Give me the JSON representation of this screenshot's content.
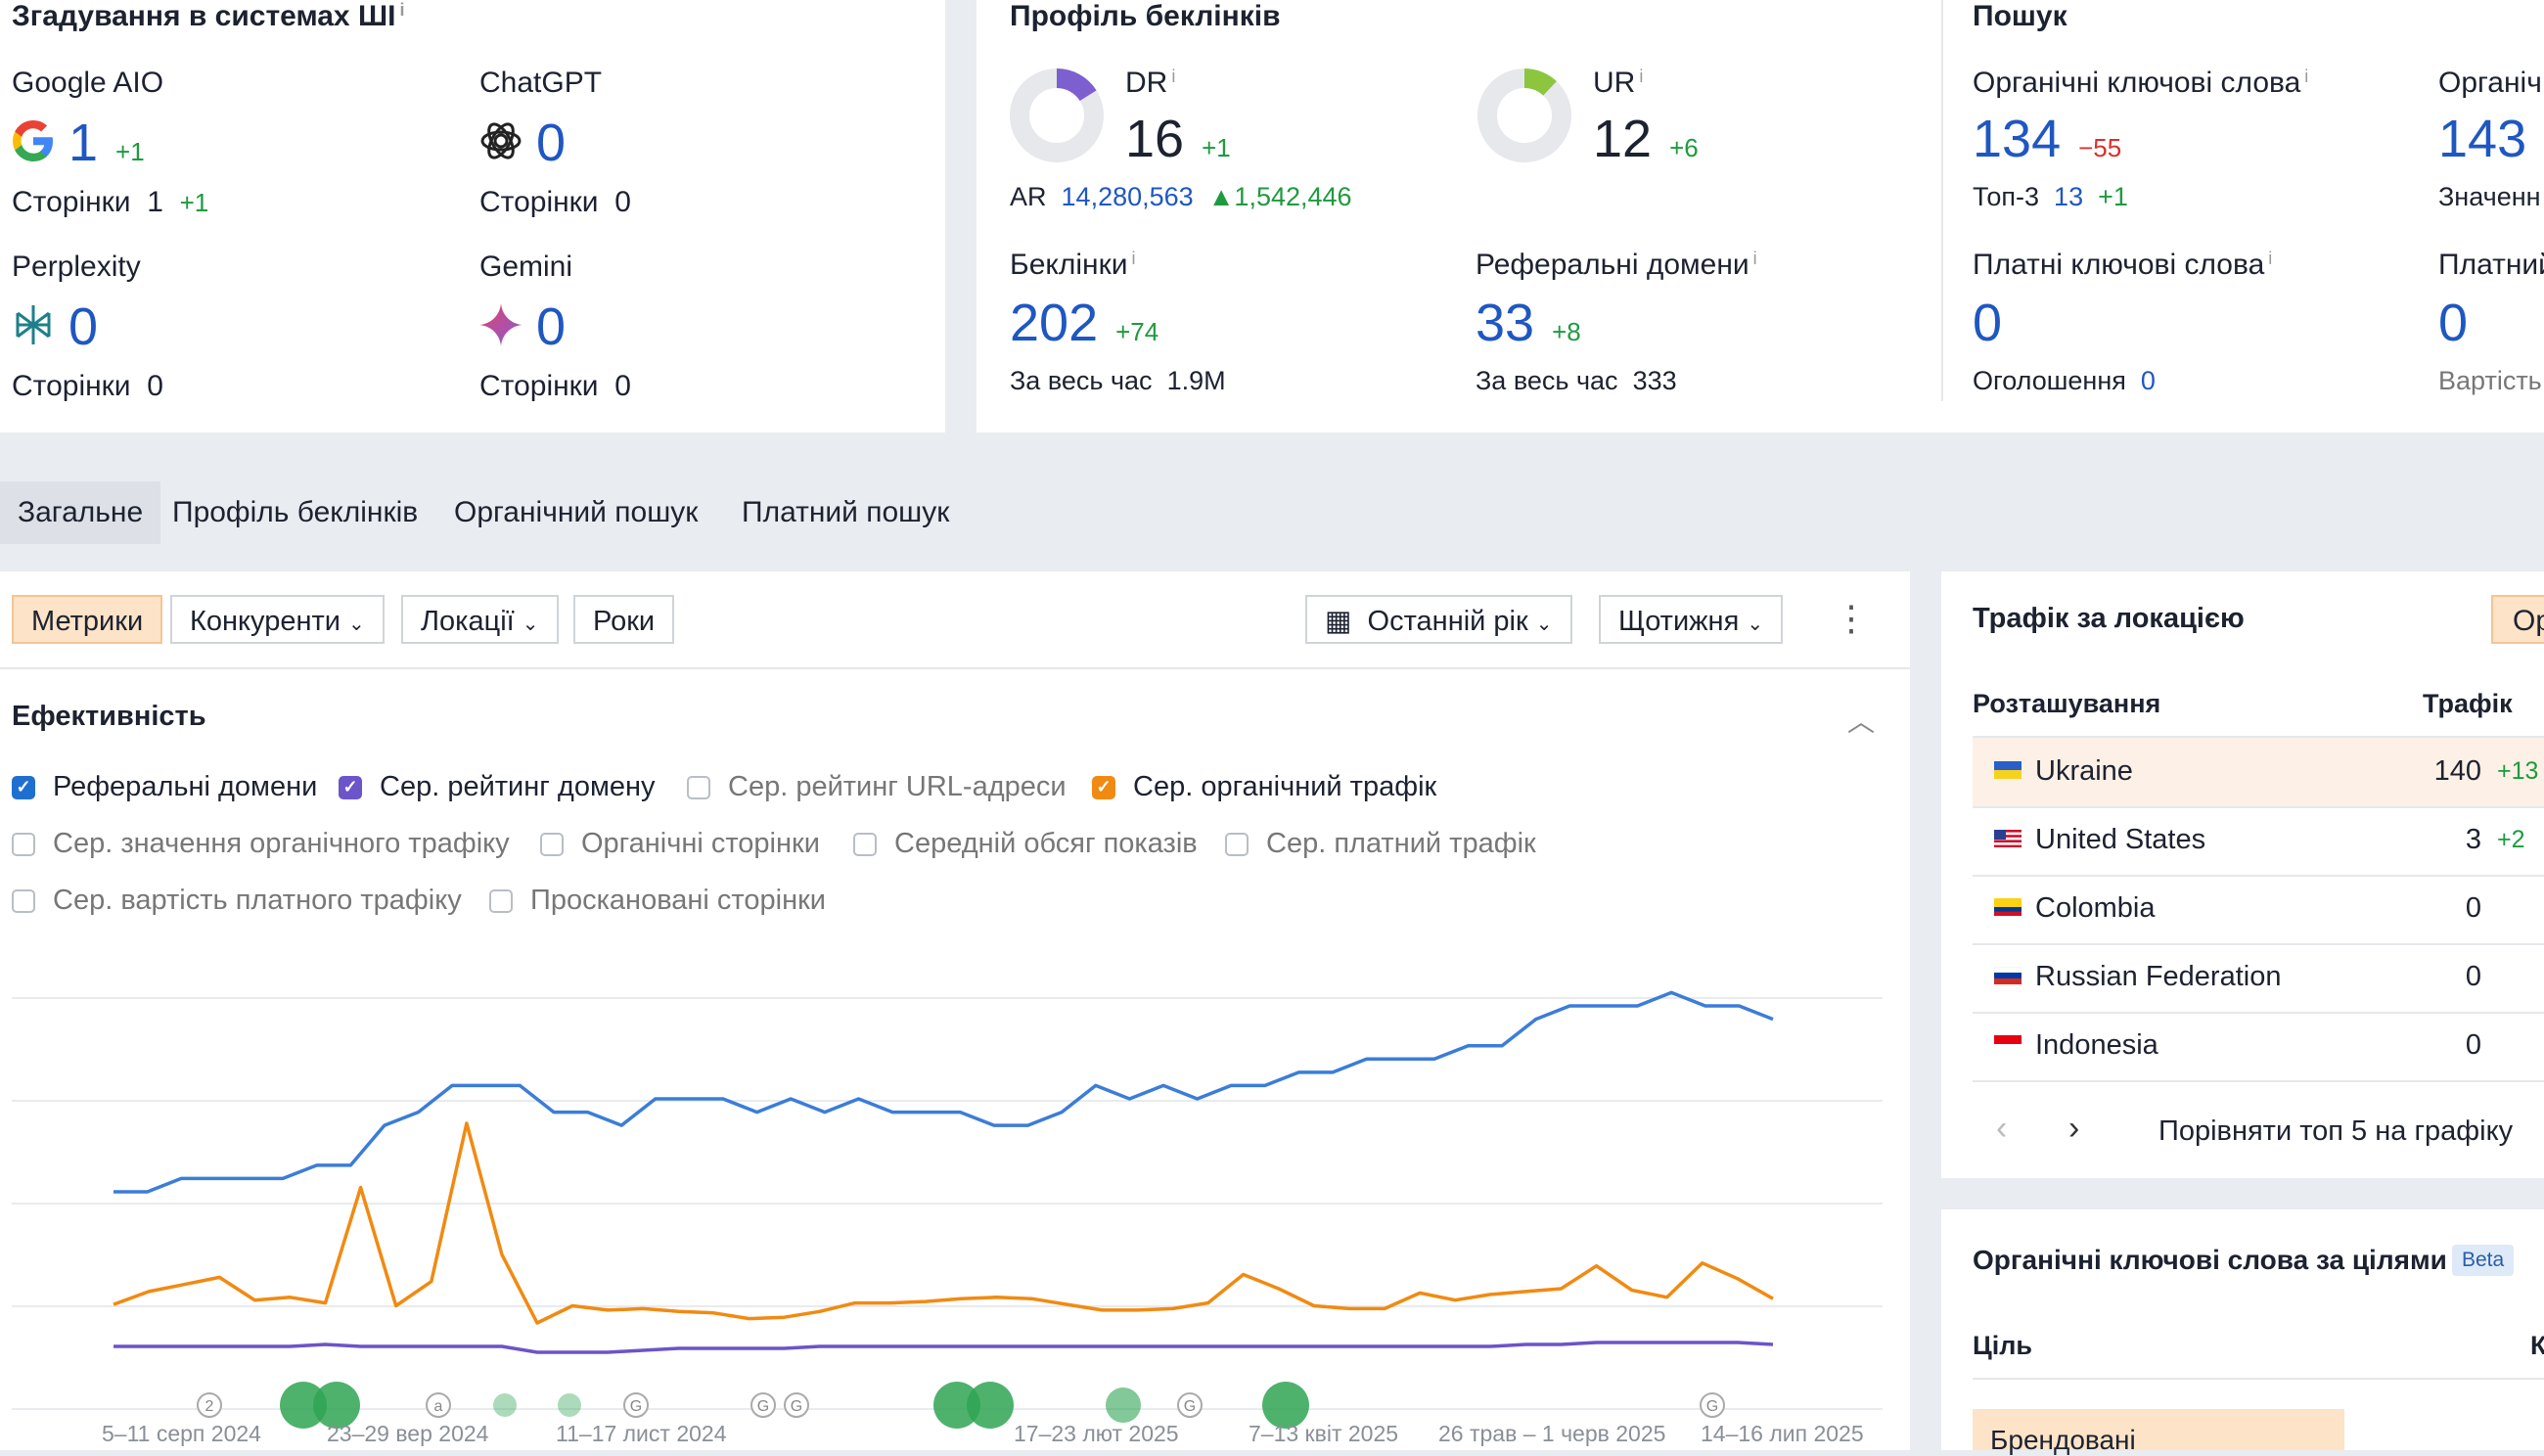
{
  "ai_mentions": {
    "title": "Згадування в системах ШІ",
    "items": [
      {
        "name": "Google AIO",
        "value": "1",
        "delta": "+1",
        "pages_label": "Сторінки",
        "pages_value": "1",
        "pages_delta": "+1"
      },
      {
        "name": "ChatGPT",
        "value": "0",
        "pages_label": "Сторінки",
        "pages_value": "0"
      },
      {
        "name": "Perplexity",
        "value": "0",
        "pages_label": "Сторінки",
        "pages_value": "0"
      },
      {
        "name": "Gemini",
        "value": "0",
        "pages_label": "Сторінки",
        "pages_value": "0"
      }
    ]
  },
  "backlinks": {
    "title": "Профіль беклінків",
    "dr_label": "DR",
    "dr_value": "16",
    "dr_delta": "+1",
    "dr_level": 0.16,
    "ur_label": "UR",
    "ur_value": "12",
    "ur_delta": "+6",
    "ur_level": 0.12,
    "ar_label": "AR",
    "ar_value": "14,280,563",
    "ar_delta": "1,542,446",
    "backlinks_label": "Беклінки",
    "backlinks_value": "202",
    "backlinks_delta": "+74",
    "backlinks_all_label": "За весь час",
    "backlinks_all_value": "1.9M",
    "refdomains_label": "Реферальні домени",
    "refdomains_value": "33",
    "refdomains_delta": "+8",
    "refdomains_all_label": "За весь час",
    "refdomains_all_value": "333"
  },
  "search": {
    "title": "Пошук",
    "organic_kw_label": "Органічні ключові слова",
    "organic_kw_value": "134",
    "organic_kw_delta": "−55",
    "top3_label": "Топ-3",
    "top3_value": "13",
    "top3_delta": "+1",
    "organic2_label": "Органіч",
    "organic2_value": "143",
    "organic2_sub": "Значенн",
    "paid_kw_label": "Платні ключові слова",
    "paid_kw_value": "0",
    "ads_label": "Оголошення",
    "ads_value": "0",
    "paid2_label": "Платний",
    "paid2_value": "0",
    "paid2_sub": "Вартість"
  },
  "tabs": [
    "Загальне",
    "Профіль беклінків",
    "Органічний пошук",
    "Платний пошук"
  ],
  "toolbar": {
    "buttons": [
      "Метрики",
      "Конкуренти",
      "Локації",
      "Роки"
    ],
    "period": "Останній рік",
    "interval": "Щотижня"
  },
  "performance": {
    "title": "Ефективність",
    "checkboxes": [
      {
        "label": "Реферальні домени",
        "checked": true,
        "color": "#1f6fd1"
      },
      {
        "label": "Сер. рейтинг домену",
        "checked": true,
        "color": "#6c54c9"
      },
      {
        "label": "Сер. рейтинг URL-адреси",
        "checked": false
      },
      {
        "label": "Сер. органічний трафік",
        "checked": true,
        "color": "#f18a12"
      },
      {
        "label": "Сер. значення органічного трафіку",
        "checked": false
      },
      {
        "label": "Органічні сторінки",
        "checked": false
      },
      {
        "label": "Середній обсяг показів",
        "checked": false
      },
      {
        "label": "Сер. платний трафік",
        "checked": false
      },
      {
        "label": "Сер. вартість платного трафіку",
        "checked": false
      },
      {
        "label": "Проскановані сторінки",
        "checked": false
      }
    ]
  },
  "chart_data": {
    "type": "line",
    "x_labels": [
      "5–11 серп 2024",
      "23–29 вер 2024",
      "11–17 лист 2024",
      "17–23 лют 2025",
      "7–13 квіт 2025",
      "26 трав – 1 черв 2025",
      "14–16 лип 2025"
    ],
    "grid": true,
    "series": [
      {
        "color": "#3b7dd8",
        "values": [
          18,
          18,
          19,
          19,
          19,
          19,
          20,
          20,
          23,
          24,
          26,
          26,
          26,
          24,
          24,
          23,
          25,
          25,
          25,
          24,
          25,
          24,
          25,
          24,
          24,
          24,
          23,
          23,
          24,
          26,
          25,
          26,
          25,
          26,
          26,
          27,
          27,
          28,
          28,
          28,
          29,
          29,
          31,
          32,
          32,
          32,
          33,
          32,
          32,
          31
        ]
      },
      {
        "color": "#f18a12",
        "values": [
          130,
          220,
          270,
          320,
          160,
          180,
          140,
          950,
          120,
          290,
          1400,
          480,
          0,
          120,
          90,
          100,
          80,
          70,
          30,
          40,
          80,
          140,
          140,
          150,
          170,
          180,
          170,
          130,
          90,
          90,
          100,
          140,
          340,
          240,
          120,
          100,
          100,
          210,
          160,
          200,
          220,
          240,
          400,
          230,
          180,
          420,
          310,
          170
        ]
      },
      {
        "color": "#6c54c9",
        "values": [
          3,
          3,
          3,
          3,
          3,
          3,
          3.1,
          3,
          3,
          3,
          3,
          3,
          2.7,
          2.7,
          2.7,
          2.8,
          2.9,
          2.9,
          2.9,
          2.9,
          3,
          3,
          3,
          3,
          3,
          3,
          3,
          3,
          3,
          3,
          3,
          3,
          3,
          3,
          3,
          3,
          3,
          3,
          3,
          3,
          3.1,
          3.1,
          3.2,
          3.2,
          3.2,
          3.2,
          3.2,
          3.1
        ]
      }
    ]
  },
  "locations": {
    "title": "Трафік за локацією",
    "button": "Ор",
    "col_location": "Розташування",
    "col_traffic": "Трафік",
    "rows": [
      {
        "country": "Ukraine",
        "traffic": "140",
        "delta": "+13"
      },
      {
        "country": "United States",
        "traffic": "3",
        "delta": "+2"
      },
      {
        "country": "Colombia",
        "traffic": "0",
        "delta": ""
      },
      {
        "country": "Russian Federation",
        "traffic": "0",
        "delta": ""
      },
      {
        "country": "Indonesia",
        "traffic": "0",
        "delta": ""
      }
    ],
    "compare_label": "Порівняти топ 5 на графіку"
  },
  "intent": {
    "title": "Органічні ключові слова за цілями",
    "badge": "Beta",
    "col_goal": "Ціль",
    "col2": "К",
    "first_row": "Брендовані"
  }
}
